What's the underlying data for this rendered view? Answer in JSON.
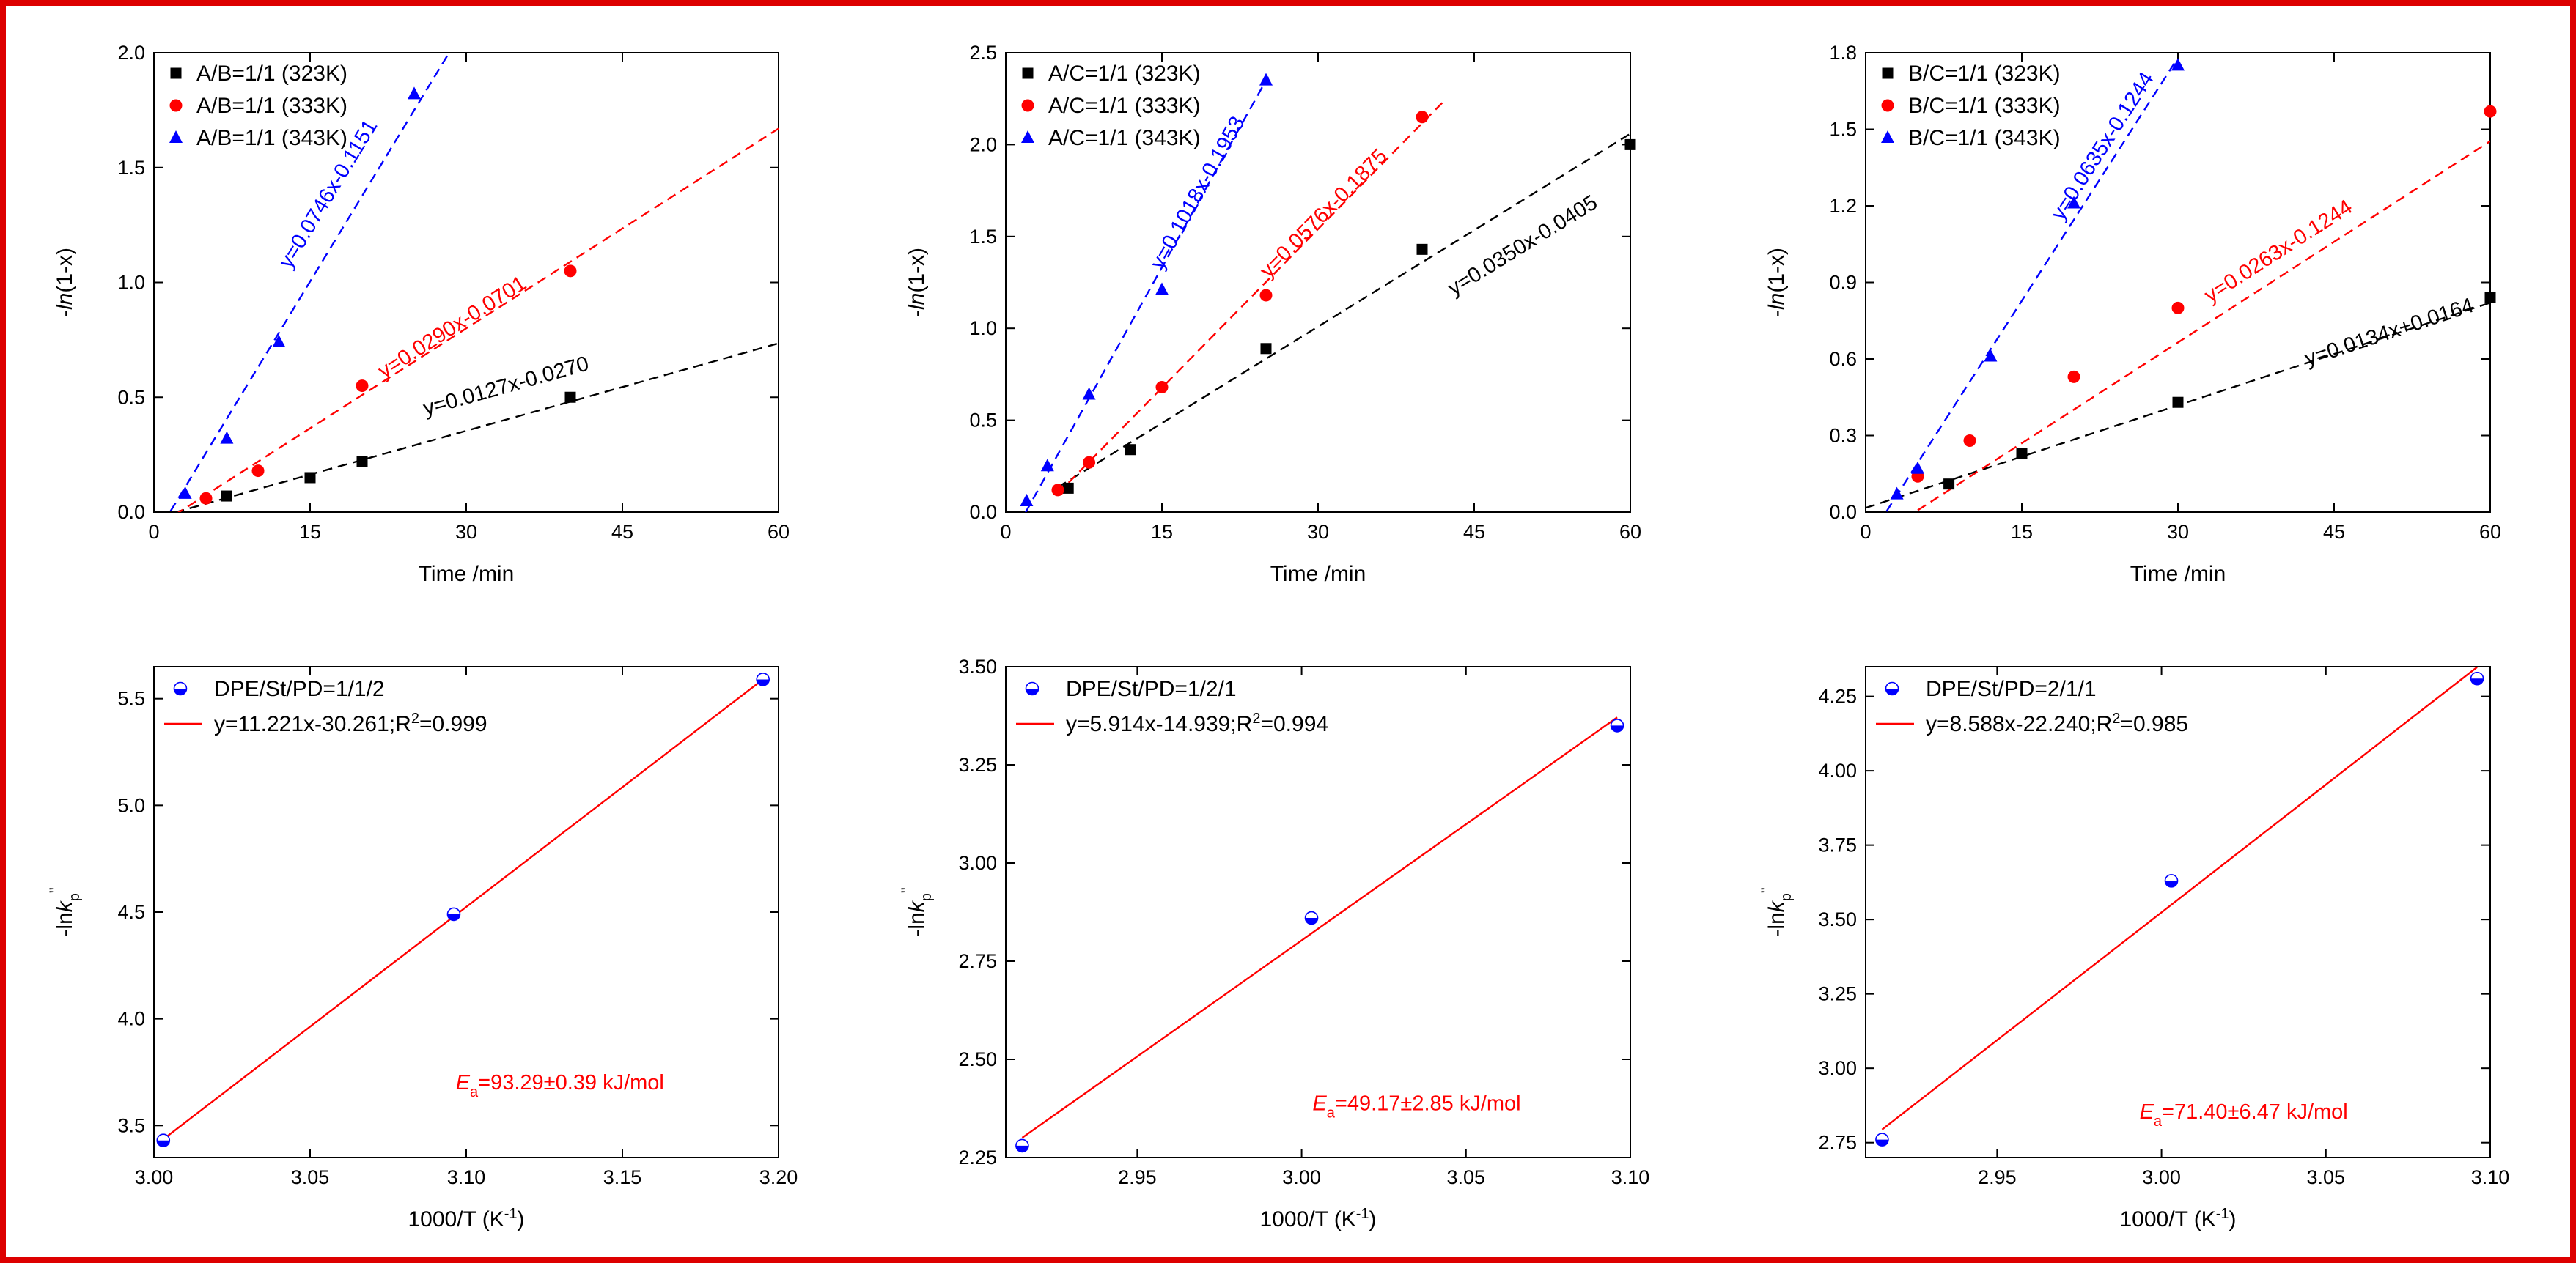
{
  "figure": {
    "frame_color": "#dd0000"
  },
  "chart_data": [
    {
      "id": "a",
      "type": "scatter",
      "ylabel": "-ln(1-x)",
      "xlabel": "Time /min",
      "xlim": [
        0,
        60
      ],
      "ylim": [
        0,
        2.0
      ],
      "xticks": [
        0,
        15,
        30,
        45,
        60
      ],
      "xtick_labels": [
        "0",
        "15",
        "30",
        "45",
        "60"
      ],
      "yticks": [
        0,
        0.5,
        1.0,
        1.5,
        2.0
      ],
      "ytick_labels": [
        "0.0",
        "0.5",
        "1.0",
        "1.5",
        "2.0"
      ],
      "series": [
        {
          "name": "A/B=1/1 (323K)",
          "marker": "square",
          "color": "#000000",
          "x": [
            7,
            15,
            20,
            40
          ],
          "y": [
            0.07,
            0.15,
            0.22,
            0.5
          ]
        },
        {
          "name": "A/B=1/1 (333K)",
          "marker": "circle",
          "color": "#ff0000",
          "x": [
            5,
            10,
            20,
            40
          ],
          "y": [
            0.06,
            0.18,
            0.55,
            1.05
          ]
        },
        {
          "name": "A/B=1/1 (343K)",
          "marker": "triangle",
          "color": "#0000ff",
          "x": [
            3,
            7,
            12,
            25
          ],
          "y": [
            0.08,
            0.32,
            0.74,
            1.82
          ]
        }
      ],
      "fits": [
        {
          "equation": "y=0.0127x-0.0270",
          "slope": 0.0127,
          "intercept": -0.027,
          "color": "#000000",
          "from": 2,
          "to": 60,
          "label_x": 34,
          "label_y": 0.52
        },
        {
          "equation": "y=0.0290x-0.0701",
          "slope": 0.029,
          "intercept": -0.0701,
          "color": "#ff0000",
          "from": 2,
          "to": 60,
          "label_x": 29,
          "label_y": 0.78
        },
        {
          "equation": "y=0.0746x-0.1151",
          "slope": 0.0746,
          "intercept": -0.1151,
          "color": "#0000ff",
          "from": 1.6,
          "to": 28.3,
          "label_x": 17.3,
          "label_y": 1.37
        }
      ],
      "legend_position": "top-left"
    },
    {
      "id": "b",
      "type": "scatter",
      "ylabel": "-ln(1-x)",
      "xlabel": "Time /min",
      "xlim": [
        0,
        60
      ],
      "ylim": [
        0,
        2.5
      ],
      "xticks": [
        0,
        15,
        30,
        45,
        60
      ],
      "xtick_labels": [
        "0",
        "15",
        "30",
        "45",
        "60"
      ],
      "yticks": [
        0,
        0.5,
        1.0,
        1.5,
        2.0,
        2.5
      ],
      "ytick_labels": [
        "0.0",
        "0.5",
        "1.0",
        "1.5",
        "2.0",
        "2.5"
      ],
      "series": [
        {
          "name": "A/C=1/1 (323K)",
          "marker": "square",
          "color": "#000000",
          "x": [
            6,
            12,
            25,
            40,
            60
          ],
          "y": [
            0.13,
            0.34,
            0.89,
            1.43,
            2.0
          ]
        },
        {
          "name": "A/C=1/1 (333K)",
          "marker": "circle",
          "color": "#ff0000",
          "x": [
            5,
            8,
            15,
            25,
            40
          ],
          "y": [
            0.12,
            0.27,
            0.68,
            1.18,
            2.15
          ]
        },
        {
          "name": "A/C=1/1 (343K)",
          "marker": "triangle",
          "color": "#0000ff",
          "x": [
            2,
            4,
            8,
            15,
            25
          ],
          "y": [
            0.06,
            0.25,
            0.64,
            1.21,
            2.35
          ]
        }
      ],
      "fits": [
        {
          "equation": "y=0.0350x-0.0405",
          "slope": 0.035,
          "intercept": -0.0405,
          "color": "#000000",
          "from": 5,
          "to": 60,
          "label_x": 50,
          "label_y": 1.42
        },
        {
          "equation": "y=0.0576x-0.1875",
          "slope": 0.0576,
          "intercept": -0.1875,
          "color": "#ff0000",
          "from": 5,
          "to": 42,
          "label_x": 31,
          "label_y": 1.6
        },
        {
          "equation": "y=0.1018x-0.1953",
          "slope": 0.1018,
          "intercept": -0.1953,
          "color": "#0000ff",
          "from": 1.9,
          "to": 25.2,
          "label_x": 19,
          "label_y": 1.72
        }
      ],
      "legend_position": "top-left"
    },
    {
      "id": "c",
      "type": "scatter",
      "ylabel": "-ln(1-x)",
      "xlabel": "Time /min",
      "xlim": [
        0,
        60
      ],
      "ylim": [
        0,
        1.8
      ],
      "xticks": [
        0,
        15,
        30,
        45,
        60
      ],
      "xtick_labels": [
        "0",
        "15",
        "30",
        "45",
        "60"
      ],
      "yticks": [
        0,
        0.3,
        0.6,
        0.9,
        1.2,
        1.5,
        1.8
      ],
      "ytick_labels": [
        "0.0",
        "0.3",
        "0.6",
        "0.9",
        "1.2",
        "1.5",
        "1.8"
      ],
      "series": [
        {
          "name": "B/C=1/1 (323K)",
          "marker": "square",
          "color": "#000000",
          "x": [
            8,
            15,
            30,
            60
          ],
          "y": [
            0.11,
            0.23,
            0.43,
            0.84
          ]
        },
        {
          "name": "B/C=1/1 (333K)",
          "marker": "circle",
          "color": "#ff0000",
          "x": [
            5,
            10,
            20,
            30,
            60
          ],
          "y": [
            0.14,
            0.28,
            0.53,
            0.8,
            1.57
          ]
        },
        {
          "name": "B/C=1/1 (343K)",
          "marker": "triangle",
          "color": "#0000ff",
          "x": [
            3,
            5,
            12,
            20,
            30
          ],
          "y": [
            0.07,
            0.17,
            0.61,
            1.21,
            1.75
          ]
        }
      ],
      "fits": [
        {
          "equation": "y=0.0134x+0.0164",
          "slope": 0.0134,
          "intercept": 0.0164,
          "color": "#000000",
          "from": 0,
          "to": 60,
          "label_x": 50.5,
          "label_y": 0.68
        },
        {
          "equation": "y=0.0263x-0.1244",
          "slope": 0.0263,
          "intercept": -0.1244,
          "color": "#ff0000",
          "from": 5,
          "to": 60,
          "label_x": 40,
          "label_y": 1.0
        },
        {
          "equation": "y=0.0635x-0.1244",
          "slope": 0.0635,
          "intercept": -0.1244,
          "color": "#0000ff",
          "from": 2,
          "to": 29.8,
          "label_x": 23.3,
          "label_y": 1.42
        }
      ],
      "legend_position": "top-left"
    },
    {
      "id": "d",
      "type": "scatter",
      "ylabel": "-lnk_p''",
      "xlabel": "1000/T (K⁻¹)",
      "xlim": [
        3.0,
        3.2
      ],
      "ylim": [
        3.35,
        5.65
      ],
      "xticks": [
        3.0,
        3.05,
        3.1,
        3.15,
        3.2
      ],
      "xtick_labels": [
        "3.00",
        "3.05",
        "3.10",
        "3.15",
        "3.20"
      ],
      "yticks": [
        3.5,
        4.0,
        4.5,
        5.0,
        5.5
      ],
      "ytick_labels": [
        "3.5",
        "4.0",
        "4.5",
        "5.0",
        "5.5"
      ],
      "series": [
        {
          "name": "DPE/St/PD=1/1/2",
          "marker": "half-circle",
          "color": "#0000ff",
          "x": [
            3.003,
            3.096,
            3.195
          ],
          "y": [
            3.43,
            4.49,
            5.59
          ]
        }
      ],
      "fits": [
        {
          "equation": "y=11.221x-30.261;R²=0.999",
          "slope": 11.221,
          "intercept": -30.261,
          "color": "#ff0000",
          "from": 3.003,
          "to": 3.195
        }
      ],
      "annotation": {
        "symbol": "E",
        "sub": "a",
        "text": "=93.29±0.39 kJ/mol",
        "x": 3.13,
        "y": 3.67
      },
      "legend_position": "top-left"
    },
    {
      "id": "e",
      "type": "scatter",
      "ylabel": "-lnk_p''",
      "xlabel": "1000/T (K⁻¹)",
      "xlim": [
        2.91,
        3.1
      ],
      "ylim": [
        2.25,
        3.5
      ],
      "xticks": [
        2.95,
        3.0,
        3.05,
        3.1
      ],
      "xtick_labels": [
        "2.95",
        "3.00",
        "3.05",
        "3.10"
      ],
      "yticks": [
        2.25,
        2.5,
        2.75,
        3.0,
        3.25,
        3.5
      ],
      "ytick_labels": [
        "2.25",
        "2.50",
        "2.75",
        "3.00",
        "3.25",
        "3.50"
      ],
      "series": [
        {
          "name": "DPE/St/PD=1/2/1",
          "marker": "half-circle",
          "color": "#0000ff",
          "x": [
            2.915,
            3.003,
            3.096
          ],
          "y": [
            2.28,
            2.86,
            3.35
          ]
        }
      ],
      "fits": [
        {
          "equation": "y=5.914x-14.939;R²=0.994",
          "slope": 5.914,
          "intercept": -14.939,
          "color": "#ff0000",
          "from": 2.915,
          "to": 3.096
        }
      ],
      "annotation": {
        "symbol": "E",
        "sub": "a",
        "text": "=49.17±2.85 kJ/mol",
        "x": 3.035,
        "y": 2.37
      },
      "legend_position": "top-left"
    },
    {
      "id": "f",
      "type": "scatter",
      "ylabel": "-lnk_p''",
      "xlabel": "1000/T (K⁻¹)",
      "xlim": [
        2.91,
        3.1
      ],
      "ylim": [
        2.7,
        4.35
      ],
      "xticks": [
        2.95,
        3.0,
        3.05,
        3.1
      ],
      "xtick_labels": [
        "2.95",
        "3.00",
        "3.05",
        "3.10"
      ],
      "yticks": [
        2.75,
        3.0,
        3.25,
        3.5,
        3.75,
        4.0,
        4.25
      ],
      "ytick_labels": [
        "2.75",
        "3.00",
        "3.25",
        "3.50",
        "3.75",
        "4.00",
        "4.25"
      ],
      "series": [
        {
          "name": "DPE/St/PD=2/1/1",
          "marker": "half-circle",
          "color": "#0000ff",
          "x": [
            2.915,
            3.003,
            3.096
          ],
          "y": [
            2.76,
            3.63,
            4.31
          ]
        }
      ],
      "fits": [
        {
          "equation": "y=8.588x-22.240;R²=0.985",
          "slope": 8.588,
          "intercept": -22.24,
          "color": "#ff0000",
          "from": 2.915,
          "to": 3.096
        }
      ],
      "annotation": {
        "symbol": "E",
        "sub": "a",
        "text": "=71.40±6.47 kJ/mol",
        "x": 3.025,
        "y": 2.83
      },
      "legend_position": "top-left"
    }
  ]
}
